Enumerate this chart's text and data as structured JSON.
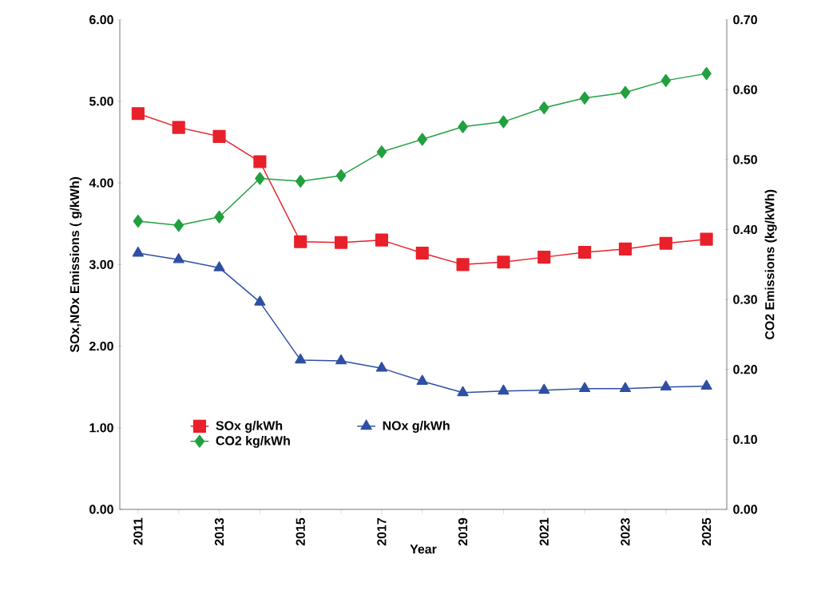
{
  "chart_data": {
    "type": "line",
    "xlabel": "Year",
    "ylabel": "SOx,NOx Emissions ( g/kWh)",
    "y2label": "CO2 Emissions (kg/kWh)",
    "categories": [
      "2011",
      null,
      "2013",
      null,
      "2015",
      null,
      "2017",
      null,
      "2019",
      null,
      "2021",
      null,
      "2023",
      null,
      "2025"
    ],
    "ylim": [
      0,
      6
    ],
    "yticks": [
      {
        "value": 0,
        "label": "0.00"
      },
      {
        "value": 1,
        "label": "1.00"
      },
      {
        "value": 2,
        "label": "2.00"
      },
      {
        "value": 3,
        "label": "3.00"
      },
      {
        "value": 4,
        "label": "4.00"
      },
      {
        "value": 5,
        "label": "5.00"
      },
      {
        "value": 6,
        "label": "6.00"
      }
    ],
    "y2lim": [
      0,
      0.7
    ],
    "y2ticks": [
      {
        "value": 0,
        "label": "0.00"
      },
      {
        "value": 0.1,
        "label": "0.10"
      },
      {
        "value": 0.2,
        "label": "0.20"
      },
      {
        "value": 0.3,
        "label": "0.30"
      },
      {
        "value": 0.4,
        "label": "0.40"
      },
      {
        "value": 0.5,
        "label": "0.50"
      },
      {
        "value": 0.6,
        "label": "0.60"
      },
      {
        "value": 0.7,
        "label": "0.70"
      }
    ],
    "legend": "bottom",
    "series": [
      {
        "name": "SOx g/kWh",
        "color": "#e8202a",
        "marker": "square",
        "values": [
          4.85,
          4.68,
          4.57,
          4.26,
          3.28,
          3.27,
          3.3,
          3.14,
          3.0,
          3.03,
          3.09,
          3.15,
          3.19,
          3.26,
          3.31
        ]
      },
      {
        "name": "NOx g/kWh",
        "color": "#2e4fa3",
        "marker": "triangle",
        "values": [
          3.14,
          3.06,
          2.96,
          2.54,
          1.83,
          1.82,
          1.73,
          1.57,
          1.43,
          1.45,
          1.46,
          1.48,
          1.48,
          1.5,
          1.51
        ]
      },
      {
        "name": "CO2 kg/kWh",
        "color": "#22a040",
        "marker": "diamond",
        "axis": "y2",
        "values": [
          0.412,
          0.406,
          0.418,
          0.473,
          0.469,
          0.477,
          0.511,
          0.529,
          0.547,
          0.554,
          0.574,
          0.588,
          0.596,
          0.613,
          0.623
        ]
      }
    ]
  }
}
